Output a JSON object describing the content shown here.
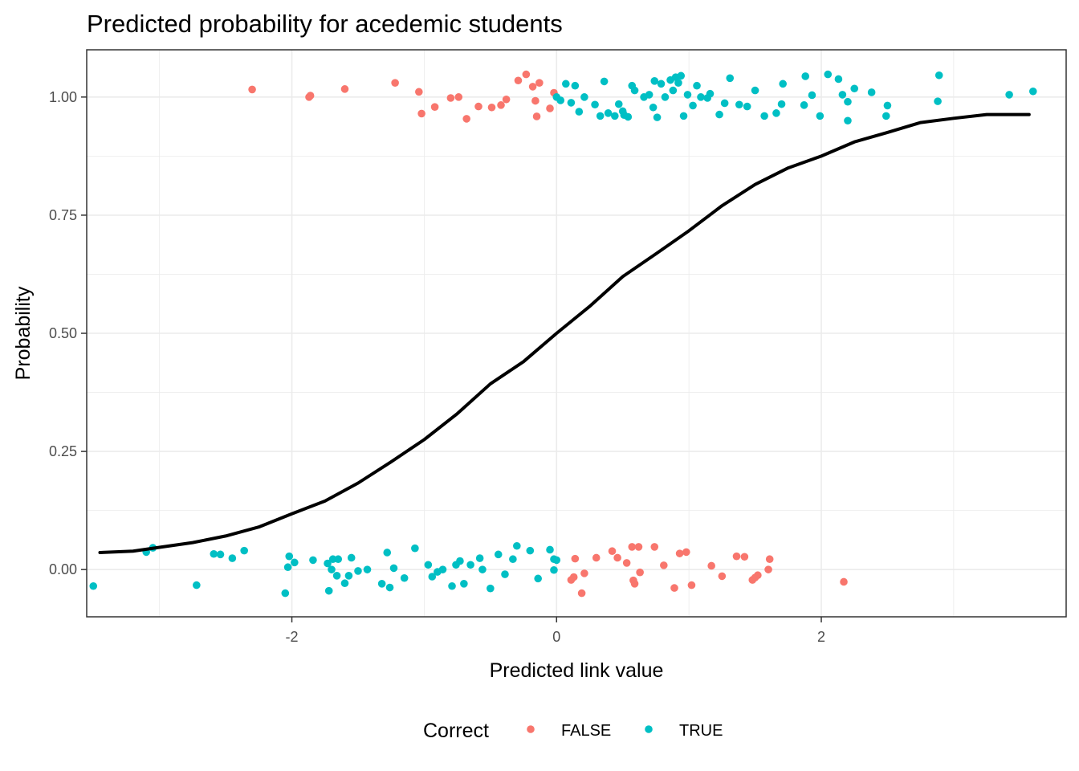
{
  "chart_data": {
    "type": "scatter",
    "title": "Predicted probability for acedemic students",
    "xlabel": "Predicted link value",
    "ylabel": "Probability",
    "xlim": [
      -3.55,
      3.85
    ],
    "ylim": [
      -0.1,
      1.1
    ],
    "x_ticks": [
      -2,
      0,
      2
    ],
    "x_tick_labels": [
      "-2",
      "0",
      "2"
    ],
    "y_ticks": [
      0,
      0.25,
      0.5,
      0.75,
      1
    ],
    "y_tick_labels": [
      "0.00",
      "0.25",
      "0.50",
      "0.75",
      "1.00"
    ],
    "grid": true,
    "legend": {
      "title": "Correct",
      "placement": "bottom",
      "entries": [
        {
          "label": "FALSE",
          "color": "#F8766D"
        },
        {
          "label": "TRUE",
          "color": "#00BFC4"
        }
      ]
    },
    "curve": {
      "color": "#000000",
      "points": [
        [
          -3.45,
          0.036
        ],
        [
          -3.2,
          0.039
        ],
        [
          -3.0,
          0.047
        ],
        [
          -2.75,
          0.057
        ],
        [
          -2.5,
          0.071
        ],
        [
          -2.25,
          0.09
        ],
        [
          -2.0,
          0.118
        ],
        [
          -1.75,
          0.145
        ],
        [
          -1.5,
          0.183
        ],
        [
          -1.25,
          0.228
        ],
        [
          -1.0,
          0.275
        ],
        [
          -0.75,
          0.33
        ],
        [
          -0.5,
          0.393
        ],
        [
          -0.25,
          0.44
        ],
        [
          0.0,
          0.5
        ],
        [
          0.25,
          0.557
        ],
        [
          0.5,
          0.62
        ],
        [
          0.75,
          0.668
        ],
        [
          1.0,
          0.717
        ],
        [
          1.25,
          0.77
        ],
        [
          1.5,
          0.815
        ],
        [
          1.75,
          0.85
        ],
        [
          2.0,
          0.875
        ],
        [
          2.25,
          0.905
        ],
        [
          2.5,
          0.925
        ],
        [
          2.75,
          0.946
        ],
        [
          3.0,
          0.955
        ],
        [
          3.25,
          0.963
        ],
        [
          3.57,
          0.963
        ]
      ]
    },
    "series": [
      {
        "name": "FALSE",
        "color": "#F8766D",
        "points": [
          [
            -2.3,
            1.016
          ],
          [
            -1.87,
            1.0
          ],
          [
            -1.86,
            1.003
          ],
          [
            -1.6,
            1.017
          ],
          [
            -1.22,
            1.03
          ],
          [
            -1.04,
            1.011
          ],
          [
            -1.02,
            0.965
          ],
          [
            -0.92,
            0.979
          ],
          [
            -0.8,
            0.998
          ],
          [
            -0.74,
            1.0
          ],
          [
            -0.68,
            0.954
          ],
          [
            -0.59,
            0.98
          ],
          [
            -0.49,
            0.978
          ],
          [
            -0.42,
            0.983
          ],
          [
            -0.38,
            0.995
          ],
          [
            -0.29,
            1.035
          ],
          [
            -0.23,
            1.048
          ],
          [
            -0.18,
            1.022
          ],
          [
            -0.16,
            0.992
          ],
          [
            -0.15,
            0.959
          ],
          [
            -0.13,
            1.03
          ],
          [
            -0.05,
            0.976
          ],
          [
            -0.02,
            1.009
          ],
          [
            0.11,
            -0.022
          ],
          [
            0.13,
            -0.016
          ],
          [
            0.14,
            0.023
          ],
          [
            0.19,
            -0.05
          ],
          [
            0.21,
            -0.008
          ],
          [
            0.3,
            0.025
          ],
          [
            0.42,
            0.039
          ],
          [
            0.46,
            0.025
          ],
          [
            0.53,
            0.014
          ],
          [
            0.57,
            0.048
          ],
          [
            0.58,
            -0.023
          ],
          [
            0.59,
            -0.03
          ],
          [
            0.62,
            0.048
          ],
          [
            0.63,
            -0.006
          ],
          [
            0.74,
            0.048
          ],
          [
            0.81,
            0.009
          ],
          [
            0.89,
            -0.039
          ],
          [
            0.93,
            0.034
          ],
          [
            0.98,
            0.037
          ],
          [
            1.02,
            -0.033
          ],
          [
            1.17,
            0.008
          ],
          [
            1.25,
            -0.014
          ],
          [
            1.36,
            0.028
          ],
          [
            1.42,
            0.027
          ],
          [
            1.48,
            -0.022
          ],
          [
            1.5,
            -0.017
          ],
          [
            1.52,
            -0.012
          ],
          [
            1.6,
            0.0
          ],
          [
            1.61,
            0.022
          ],
          [
            2.17,
            -0.026
          ]
        ]
      },
      {
        "name": "TRUE",
        "color": "#00BFC4",
        "points": [
          [
            0.0,
            1.0
          ],
          [
            0.03,
            0.993
          ],
          [
            0.07,
            1.028
          ],
          [
            0.11,
            0.988
          ],
          [
            0.14,
            1.024
          ],
          [
            0.17,
            0.969
          ],
          [
            0.21,
            1.0
          ],
          [
            0.29,
            0.984
          ],
          [
            0.33,
            0.96
          ],
          [
            0.36,
            1.033
          ],
          [
            0.39,
            0.966
          ],
          [
            0.44,
            0.96
          ],
          [
            0.47,
            0.985
          ],
          [
            0.5,
            0.97
          ],
          [
            0.51,
            0.962
          ],
          [
            0.54,
            0.958
          ],
          [
            0.57,
            1.024
          ],
          [
            0.59,
            1.014
          ],
          [
            0.66,
            1.0
          ],
          [
            0.7,
            1.005
          ],
          [
            0.73,
            0.978
          ],
          [
            0.74,
            1.034
          ],
          [
            0.76,
            0.957
          ],
          [
            0.79,
            1.028
          ],
          [
            0.82,
            1.0
          ],
          [
            0.86,
            1.036
          ],
          [
            0.88,
            1.014
          ],
          [
            0.9,
            1.042
          ],
          [
            0.92,
            1.03
          ],
          [
            0.94,
            1.045
          ],
          [
            0.96,
            0.96
          ],
          [
            0.99,
            1.005
          ],
          [
            1.03,
            0.982
          ],
          [
            1.06,
            1.024
          ],
          [
            1.09,
            1.0
          ],
          [
            1.14,
            0.998
          ],
          [
            1.16,
            1.007
          ],
          [
            1.23,
            0.963
          ],
          [
            1.27,
            0.987
          ],
          [
            1.31,
            1.04
          ],
          [
            1.38,
            0.984
          ],
          [
            1.44,
            0.98
          ],
          [
            1.5,
            1.014
          ],
          [
            1.57,
            0.96
          ],
          [
            1.66,
            0.966
          ],
          [
            1.7,
            0.985
          ],
          [
            1.71,
            1.028
          ],
          [
            1.87,
            0.983
          ],
          [
            1.88,
            1.044
          ],
          [
            1.93,
            1.004
          ],
          [
            1.99,
            0.96
          ],
          [
            2.05,
            1.048
          ],
          [
            2.13,
            1.038
          ],
          [
            2.16,
            1.005
          ],
          [
            2.2,
            0.95
          ],
          [
            2.2,
            0.99
          ],
          [
            2.25,
            1.018
          ],
          [
            2.38,
            1.01
          ],
          [
            2.49,
            0.96
          ],
          [
            2.5,
            0.982
          ],
          [
            2.88,
            0.991
          ],
          [
            2.89,
            1.046
          ],
          [
            3.42,
            1.005
          ],
          [
            3.6,
            1.012
          ],
          [
            -3.5,
            -0.035
          ],
          [
            -3.1,
            0.037
          ],
          [
            -3.05,
            0.046
          ],
          [
            -2.72,
            -0.033
          ],
          [
            -2.59,
            0.033
          ],
          [
            -2.54,
            0.032
          ],
          [
            -2.45,
            0.024
          ],
          [
            -2.36,
            0.04
          ],
          [
            -2.05,
            -0.05
          ],
          [
            -2.03,
            0.005
          ],
          [
            -2.02,
            0.028
          ],
          [
            -1.98,
            0.015
          ],
          [
            -1.84,
            0.02
          ],
          [
            -1.73,
            0.013
          ],
          [
            -1.72,
            -0.045
          ],
          [
            -1.7,
            0.0
          ],
          [
            -1.69,
            0.022
          ],
          [
            -1.66,
            -0.013
          ],
          [
            -1.65,
            0.022
          ],
          [
            -1.6,
            -0.029
          ],
          [
            -1.57,
            -0.013
          ],
          [
            -1.55,
            0.025
          ],
          [
            -1.5,
            -0.003
          ],
          [
            -1.43,
            0.0
          ],
          [
            -1.32,
            -0.03
          ],
          [
            -1.28,
            0.036
          ],
          [
            -1.26,
            -0.038
          ],
          [
            -1.23,
            0.003
          ],
          [
            -1.15,
            -0.018
          ],
          [
            -1.07,
            0.045
          ],
          [
            -0.97,
            0.01
          ],
          [
            -0.94,
            -0.015
          ],
          [
            -0.9,
            -0.005
          ],
          [
            -0.86,
            0.0
          ],
          [
            -0.79,
            -0.035
          ],
          [
            -0.76,
            0.01
          ],
          [
            -0.73,
            0.018
          ],
          [
            -0.7,
            -0.03
          ],
          [
            -0.65,
            0.01
          ],
          [
            -0.58,
            0.024
          ],
          [
            -0.56,
            0.0
          ],
          [
            -0.5,
            -0.04
          ],
          [
            -0.44,
            0.032
          ],
          [
            -0.39,
            -0.01
          ],
          [
            -0.33,
            0.022
          ],
          [
            -0.3,
            0.05
          ],
          [
            -0.2,
            0.04
          ],
          [
            -0.14,
            -0.019
          ],
          [
            -0.05,
            0.042
          ],
          [
            -0.02,
            0.022
          ],
          [
            0.0,
            0.02
          ],
          [
            -0.02,
            -0.001
          ]
        ]
      }
    ]
  }
}
